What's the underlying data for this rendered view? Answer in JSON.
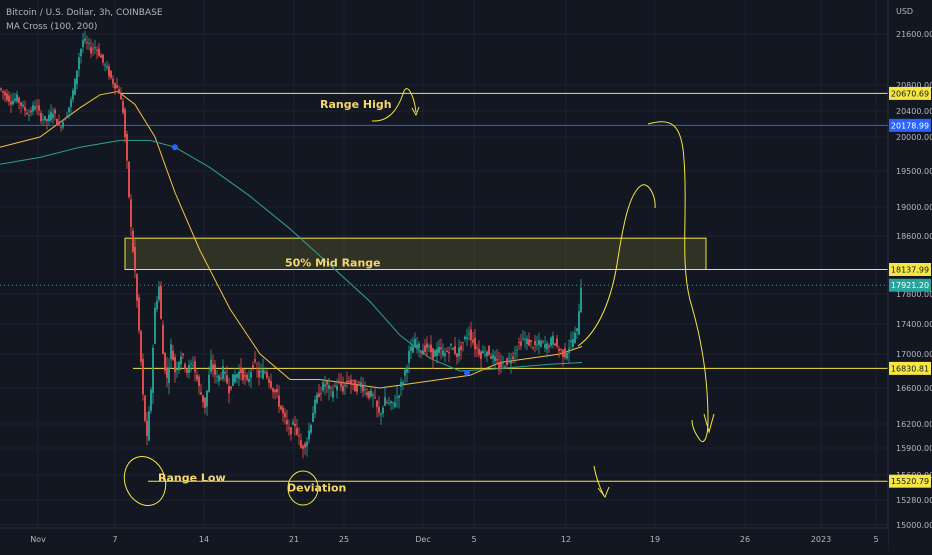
{
  "header": {
    "symbol_line": "Bitcoin / U.S. Dollar, 3h, COINBASE",
    "indicator_line": "MA Cross (100, 200)"
  },
  "chart_data": {
    "type": "candlestick",
    "currency_label": "USD",
    "ylim": [
      15000,
      22000
    ],
    "y_ticks": [
      21600,
      20800,
      20400,
      20000,
      19500,
      19000,
      18600,
      17800,
      17400,
      17000,
      16600,
      16200,
      15900,
      15600,
      15280,
      15000
    ],
    "x_ticks": [
      "Nov",
      "7",
      "14",
      "21",
      "25",
      "Dec",
      "5",
      "12",
      "19",
      "26",
      "2023",
      "5"
    ],
    "price_path": [
      [
        0,
        20750
      ],
      [
        6,
        20650
      ],
      [
        12,
        20550
      ],
      [
        18,
        20600
      ],
      [
        24,
        20450
      ],
      [
        30,
        20350
      ],
      [
        36,
        20500
      ],
      [
        42,
        20300
      ],
      [
        48,
        20250
      ],
      [
        54,
        20400
      ],
      [
        60,
        20150
      ],
      [
        66,
        20300
      ],
      [
        72,
        20550
      ],
      [
        76,
        20850
      ],
      [
        80,
        21250
      ],
      [
        84,
        21500
      ],
      [
        88,
        21450
      ],
      [
        92,
        21350
      ],
      [
        96,
        21400
      ],
      [
        100,
        21300
      ],
      [
        104,
        21150
      ],
      [
        108,
        21050
      ],
      [
        112,
        20900
      ],
      [
        116,
        20800
      ],
      [
        120,
        20700
      ],
      [
        124,
        20400
      ],
      [
        128,
        19600
      ],
      [
        132,
        18700
      ],
      [
        136,
        18100
      ],
      [
        140,
        17300
      ],
      [
        144,
        16500
      ],
      [
        148,
        16000
      ],
      [
        152,
        16600
      ],
      [
        156,
        17600
      ],
      [
        160,
        17900
      ],
      [
        164,
        17000
      ],
      [
        168,
        16700
      ],
      [
        172,
        17100
      ],
      [
        176,
        16800
      ],
      [
        182,
        17000
      ],
      [
        188,
        16800
      ],
      [
        194,
        16900
      ],
      [
        200,
        16600
      ],
      [
        206,
        16400
      ],
      [
        212,
        16900
      ],
      [
        218,
        16700
      ],
      [
        224,
        16800
      ],
      [
        230,
        16600
      ],
      [
        236,
        16750
      ],
      [
        242,
        16800
      ],
      [
        248,
        16650
      ],
      [
        254,
        16900
      ],
      [
        260,
        16750
      ],
      [
        266,
        16800
      ],
      [
        272,
        16650
      ],
      [
        278,
        16500
      ],
      [
        284,
        16300
      ],
      [
        290,
        16100
      ],
      [
        296,
        16200
      ],
      [
        302,
        15900
      ],
      [
        308,
        16000
      ],
      [
        314,
        16350
      ],
      [
        320,
        16550
      ],
      [
        326,
        16650
      ],
      [
        332,
        16550
      ],
      [
        338,
        16650
      ],
      [
        344,
        16600
      ],
      [
        350,
        16700
      ],
      [
        356,
        16600
      ],
      [
        362,
        16650
      ],
      [
        368,
        16550
      ],
      [
        374,
        16500
      ],
      [
        380,
        16300
      ],
      [
        386,
        16450
      ],
      [
        392,
        16400
      ],
      [
        398,
        16500
      ],
      [
        404,
        16700
      ],
      [
        410,
        17000
      ],
      [
        416,
        17150
      ],
      [
        422,
        17050
      ],
      [
        428,
        17100
      ],
      [
        434,
        17000
      ],
      [
        440,
        17050
      ],
      [
        446,
        17000
      ],
      [
        452,
        17100
      ],
      [
        458,
        17000
      ],
      [
        464,
        17150
      ],
      [
        470,
        17300
      ],
      [
        476,
        17100
      ],
      [
        482,
        17000
      ],
      [
        488,
        17050
      ],
      [
        494,
        16950
      ],
      [
        500,
        16850
      ],
      [
        506,
        16900
      ],
      [
        512,
        16950
      ],
      [
        518,
        17100
      ],
      [
        524,
        17200
      ],
      [
        530,
        17150
      ],
      [
        536,
        17100
      ],
      [
        542,
        17150
      ],
      [
        548,
        17100
      ],
      [
        554,
        17200
      ],
      [
        560,
        17050
      ],
      [
        566,
        17000
      ],
      [
        572,
        17150
      ],
      [
        578,
        17300
      ],
      [
        582,
        17920
      ]
    ],
    "series": [
      {
        "name": "MA 100",
        "color": "#f5c242",
        "points": [
          [
            0,
            19850
          ],
          [
            40,
            20000
          ],
          [
            80,
            20450
          ],
          [
            100,
            20650
          ],
          [
            118,
            20700
          ],
          [
            135,
            20500
          ],
          [
            155,
            20000
          ],
          [
            175,
            19200
          ],
          [
            200,
            18400
          ],
          [
            230,
            17600
          ],
          [
            260,
            17000
          ],
          [
            290,
            16700
          ],
          [
            320,
            16700
          ],
          [
            350,
            16650
          ],
          [
            380,
            16600
          ],
          [
            410,
            16650
          ],
          [
            440,
            16700
          ],
          [
            470,
            16750
          ],
          [
            500,
            16900
          ],
          [
            530,
            16950
          ],
          [
            560,
            17000
          ],
          [
            582,
            17100
          ]
        ]
      },
      {
        "name": "MA 200",
        "color": "#2fa38e",
        "points": [
          [
            0,
            19600
          ],
          [
            40,
            19700
          ],
          [
            80,
            19850
          ],
          [
            120,
            19950
          ],
          [
            150,
            19950
          ],
          [
            175,
            19850
          ],
          [
            210,
            19550
          ],
          [
            250,
            19150
          ],
          [
            290,
            18700
          ],
          [
            330,
            18200
          ],
          [
            370,
            17700
          ],
          [
            400,
            17250
          ],
          [
            430,
            16950
          ],
          [
            460,
            16800
          ],
          [
            490,
            16820
          ],
          [
            520,
            16850
          ],
          [
            550,
            16880
          ],
          [
            582,
            16900
          ]
        ]
      }
    ],
    "cross_points": [
      [
        175,
        19850
      ],
      [
        467,
        16780
      ]
    ],
    "levels": [
      {
        "value": 20670.69,
        "label": "20670.69",
        "color": "#f5e642",
        "kind": "line",
        "x_start": 120
      },
      {
        "value": 20178.99,
        "label": "20178.99",
        "color": "#2962ff",
        "kind": "line",
        "x_start": 0
      },
      {
        "value": 18137.99,
        "label": "18137.99",
        "color": "#f5e642",
        "kind": "line",
        "x_start": 125
      },
      {
        "value": 16830.81,
        "label": "16830.81",
        "color": "#f5e642",
        "kind": "line",
        "x_start": 133
      },
      {
        "value": 15520.79,
        "label": "15520.79",
        "color": "#f5e642",
        "kind": "line",
        "x_start": 148
      }
    ],
    "last_price": {
      "value": 17921.2,
      "label": "17921.20",
      "color": "#26a69a"
    },
    "mid_range_zone": {
      "from": 18137.99,
      "to": 18570,
      "x1": 125,
      "x2": 706
    },
    "annotations": [
      {
        "text": "Range High",
        "x": 320,
        "y": 20450
      },
      {
        "text": "50% Mid Range",
        "x": 285,
        "y": 18180
      },
      {
        "text": "Range Low",
        "x": 158,
        "y": 15520
      },
      {
        "text": "Deviation",
        "x": 287,
        "y": 15390
      }
    ]
  }
}
